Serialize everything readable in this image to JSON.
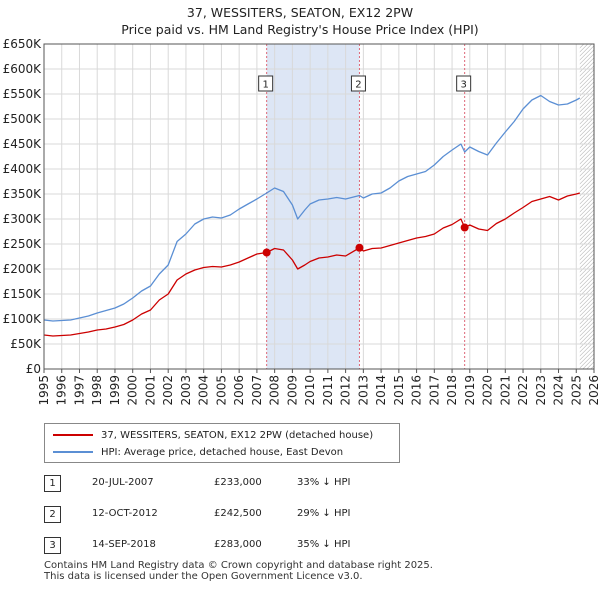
{
  "title": {
    "line1": "37, WESSITERS, SEATON, EX12 2PW",
    "line2": "Price paid vs. HM Land Registry's House Price Index (HPI)"
  },
  "legend": {
    "property_label": "37, WESSITERS, SEATON, EX12 2PW (detached house)",
    "hpi_label": "HPI: Average price, detached house, East Devon"
  },
  "colors": {
    "property": "#cc0000",
    "hpi": "#5b8fd4",
    "shade": "#dde6f5",
    "marker_line": "#dd6677",
    "grid": "#d9d9d9"
  },
  "annotations": [
    {
      "num": "1",
      "date": "20-JUL-2007",
      "price": "£233,000",
      "pct": "33% ↓ HPI"
    },
    {
      "num": "2",
      "date": "12-OCT-2012",
      "price": "£242,500",
      "pct": "29% ↓ HPI"
    },
    {
      "num": "3",
      "date": "14-SEP-2018",
      "price": "£283,000",
      "pct": "35% ↓ HPI"
    }
  ],
  "footer": {
    "line1": "Contains HM Land Registry data © Crown copyright and database right 2025.",
    "line2": "This data is licensed under the Open Government Licence v3.0."
  },
  "chart_data": {
    "type": "line",
    "xlim": [
      1995,
      2026
    ],
    "ylim": [
      0,
      650000
    ],
    "x_ticks": [
      1995,
      1996,
      1997,
      1998,
      1999,
      2000,
      2001,
      2002,
      2003,
      2004,
      2005,
      2006,
      2007,
      2008,
      2009,
      2010,
      2011,
      2012,
      2013,
      2014,
      2015,
      2016,
      2017,
      2018,
      2019,
      2020,
      2021,
      2022,
      2023,
      2024,
      2025,
      2026
    ],
    "y_ticks": [
      {
        "value": 0,
        "label": "£0"
      },
      {
        "value": 50000,
        "label": "£50K"
      },
      {
        "value": 100000,
        "label": "£100K"
      },
      {
        "value": 150000,
        "label": "£150K"
      },
      {
        "value": 200000,
        "label": "£200K"
      },
      {
        "value": 250000,
        "label": "£250K"
      },
      {
        "value": 300000,
        "label": "£300K"
      },
      {
        "value": 350000,
        "label": "£350K"
      },
      {
        "value": 400000,
        "label": "£400K"
      },
      {
        "value": 450000,
        "label": "£450K"
      },
      {
        "value": 500000,
        "label": "£500K"
      },
      {
        "value": 550000,
        "label": "£550K"
      },
      {
        "value": 600000,
        "label": "£600K"
      },
      {
        "value": 650000,
        "label": "£650K"
      }
    ],
    "series": [
      {
        "name": "37, WESSITERS, SEATON, EX12 2PW (detached house)",
        "x": [
          1995,
          1995.5,
          1996,
          1996.5,
          1997,
          1997.5,
          1998,
          1998.5,
          1999,
          1999.5,
          2000,
          2000.5,
          2001,
          2001.5,
          2002,
          2002.5,
          2003,
          2003.5,
          2004,
          2004.5,
          2005,
          2005.5,
          2006,
          2006.5,
          2007,
          2007.55,
          2008,
          2008.5,
          2009,
          2009.3,
          2009.7,
          2010,
          2010.5,
          2011,
          2011.5,
          2012,
          2012.78,
          2013,
          2013.5,
          2014,
          2014.5,
          2015,
          2015.5,
          2016,
          2016.5,
          2017,
          2017.5,
          2018,
          2018.5,
          2018.71,
          2019,
          2019.5,
          2020,
          2020.5,
          2021,
          2021.5,
          2022,
          2022.5,
          2023,
          2023.5,
          2024,
          2024.5,
          2025,
          2025.2
        ],
        "values": [
          68000,
          66000,
          67000,
          68000,
          71000,
          74000,
          78000,
          80000,
          84000,
          89000,
          98000,
          110000,
          118000,
          138000,
          150000,
          178000,
          190000,
          198000,
          203000,
          205000,
          204000,
          208000,
          214000,
          222000,
          230000,
          233000,
          241000,
          238000,
          218000,
          200000,
          208000,
          215000,
          222000,
          224000,
          228000,
          226000,
          242500,
          236000,
          241000,
          242000,
          247000,
          252000,
          257000,
          262000,
          265000,
          270000,
          282000,
          289000,
          300000,
          283000,
          288000,
          280000,
          277000,
          291000,
          300000,
          312000,
          323000,
          335000,
          340000,
          345000,
          338000,
          346000,
          350000,
          352000
        ]
      },
      {
        "name": "HPI: Average price, detached house, East Devon",
        "x": [
          1995,
          1995.5,
          1996,
          1996.5,
          1997,
          1997.5,
          1998,
          1998.5,
          1999,
          1999.5,
          2000,
          2000.5,
          2001,
          2001.5,
          2002,
          2002.5,
          2003,
          2003.5,
          2004,
          2004.5,
          2005,
          2005.5,
          2006,
          2006.5,
          2007,
          2007.55,
          2008,
          2008.5,
          2009,
          2009.3,
          2009.7,
          2010,
          2010.5,
          2011,
          2011.5,
          2012,
          2012.78,
          2013,
          2013.5,
          2014,
          2014.5,
          2015,
          2015.5,
          2016,
          2016.5,
          2017,
          2017.5,
          2018,
          2018.5,
          2018.71,
          2019,
          2019.5,
          2020,
          2020.5,
          2021,
          2021.5,
          2022,
          2022.5,
          2023,
          2023.5,
          2024,
          2024.5,
          2025,
          2025.2
        ],
        "values": [
          98000,
          96000,
          97000,
          98000,
          102000,
          106000,
          112000,
          117000,
          122000,
          130000,
          142000,
          156000,
          166000,
          190000,
          208000,
          255000,
          270000,
          290000,
          300000,
          304000,
          302000,
          308000,
          320000,
          330000,
          340000,
          352000,
          362000,
          355000,
          328000,
          300000,
          318000,
          330000,
          338000,
          340000,
          343000,
          340000,
          347000,
          342000,
          350000,
          352000,
          362000,
          376000,
          385000,
          390000,
          395000,
          408000,
          425000,
          438000,
          450000,
          434000,
          444000,
          435000,
          428000,
          452000,
          474000,
          495000,
          520000,
          538000,
          547000,
          535000,
          528000,
          530000,
          538000,
          542000
        ]
      }
    ],
    "sales": [
      {
        "label": "1",
        "x": 2007.55,
        "value": 233000
      },
      {
        "label": "2",
        "x": 2012.78,
        "value": 242500
      },
      {
        "label": "3",
        "x": 2018.71,
        "value": 283000
      }
    ],
    "shaded_ranges": [
      [
        2007.55,
        2012.78
      ],
      [
        2025.2,
        2026
      ]
    ]
  }
}
